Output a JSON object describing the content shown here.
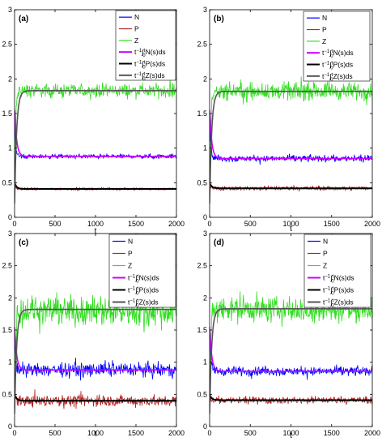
{
  "chart_data": [
    {
      "type": "line",
      "panel_label": "(a)",
      "xlabel": "t",
      "xlim": [
        0,
        2000
      ],
      "ylim": [
        0,
        3
      ],
      "xticks": [
        0,
        500,
        1000,
        1500,
        2000
      ],
      "yticks": [
        0,
        0.5,
        1,
        1.5,
        2,
        2.5,
        3
      ],
      "noise_amplitude": {
        "N": 0.04,
        "P": 0.02,
        "Z": 0.12
      },
      "series": [
        {
          "name": "N",
          "color": "#0000ff",
          "kind": "noisy",
          "level": 0.88,
          "initial": 1.55
        },
        {
          "name": "P",
          "color": "#b22222",
          "kind": "noisy",
          "level": 0.41,
          "initial": 0.5
        },
        {
          "name": "Z",
          "color": "#33dd22",
          "kind": "noisy",
          "level": 1.83,
          "initial": 0.2
        },
        {
          "name": "t⁻¹∫₀ᵗN(s)ds",
          "color": "#cc00ff",
          "kind": "mean",
          "level": 0.88,
          "initial": 1.55
        },
        {
          "name": "t⁻¹∫₀ᵗP(s)ds",
          "color": "#000000",
          "kind": "mean",
          "level": 0.41,
          "initial": 0.5
        },
        {
          "name": "t⁻¹∫₀ᵗZ(s)ds",
          "color": "#555555",
          "kind": "mean",
          "level": 1.83,
          "initial": 0.2
        }
      ]
    },
    {
      "type": "line",
      "panel_label": "(b)",
      "xlabel": "t",
      "xlim": [
        0,
        2000
      ],
      "ylim": [
        0,
        3
      ],
      "xticks": [
        0,
        500,
        1000,
        1500,
        2000
      ],
      "yticks": [
        0,
        0.5,
        1,
        1.5,
        2,
        2.5,
        3
      ],
      "noise_amplitude": {
        "N": 0.06,
        "P": 0.04,
        "Z": 0.15
      },
      "series": [
        {
          "name": "N",
          "color": "#0000ff",
          "kind": "noisy",
          "level": 0.85,
          "initial": 1.55
        },
        {
          "name": "P",
          "color": "#b22222",
          "kind": "noisy",
          "level": 0.42,
          "initial": 0.5
        },
        {
          "name": "Z",
          "color": "#33dd22",
          "kind": "noisy",
          "level": 1.82,
          "initial": 0.2
        },
        {
          "name": "t⁻¹∫₀ᵗN(s)ds",
          "color": "#cc00ff",
          "kind": "mean",
          "level": 0.85,
          "initial": 1.55
        },
        {
          "name": "t⁻¹∫₀ᵗP(s)ds",
          "color": "#000000",
          "kind": "mean",
          "level": 0.42,
          "initial": 0.5
        },
        {
          "name": "t⁻¹∫₀ᵗZ(s)ds",
          "color": "#555555",
          "kind": "mean",
          "level": 1.82,
          "initial": 0.2
        }
      ]
    },
    {
      "type": "line",
      "panel_label": "(c)",
      "xlabel": "t",
      "xlim": [
        0,
        2000
      ],
      "ylim": [
        0,
        3
      ],
      "xticks": [
        0,
        500,
        1000,
        1500,
        2000
      ],
      "yticks": [
        0,
        0.5,
        1,
        1.5,
        2,
        2.5,
        3
      ],
      "noise_amplitude": {
        "N": 0.13,
        "P": 0.11,
        "Z": 0.28
      },
      "series": [
        {
          "name": "N",
          "color": "#0000ff",
          "kind": "noisy",
          "level": 0.88,
          "initial": 1.55
        },
        {
          "name": "P",
          "color": "#b22222",
          "kind": "noisy",
          "level": 0.4,
          "initial": 0.5
        },
        {
          "name": "Z",
          "color": "#33dd22",
          "kind": "noisy",
          "level": 1.8,
          "initial": 0.2
        },
        {
          "name": "t⁻¹∫₀ᵗN(s)ds",
          "color": "#cc00ff",
          "kind": "mean",
          "level": 0.88,
          "initial": 1.55
        },
        {
          "name": "t⁻¹∫₀ᵗP(s)ds",
          "color": "#000000",
          "kind": "mean",
          "level": 0.4,
          "initial": 0.5
        },
        {
          "name": "t⁻¹∫₀ᵗZ(s)ds",
          "color": "#555555",
          "kind": "mean",
          "level": 1.82,
          "initial": 0.2
        }
      ]
    },
    {
      "type": "line",
      "panel_label": "(d)",
      "xlabel": "t",
      "xlim": [
        0,
        2000
      ],
      "ylim": [
        0,
        3
      ],
      "xticks": [
        0,
        500,
        1000,
        1500,
        2000
      ],
      "yticks": [
        0,
        0.5,
        1,
        1.5,
        2,
        2.5,
        3
      ],
      "noise_amplitude": {
        "N": 0.09,
        "P": 0.07,
        "Z": 0.24
      },
      "series": [
        {
          "name": "N",
          "color": "#0000ff",
          "kind": "noisy",
          "level": 0.86,
          "initial": 1.55
        },
        {
          "name": "P",
          "color": "#b22222",
          "kind": "noisy",
          "level": 0.41,
          "initial": 0.5
        },
        {
          "name": "Z",
          "color": "#33dd22",
          "kind": "noisy",
          "level": 1.82,
          "initial": 0.2
        },
        {
          "name": "t⁻¹∫₀ᵗN(s)ds",
          "color": "#cc00ff",
          "kind": "mean",
          "level": 0.86,
          "initial": 1.55
        },
        {
          "name": "t⁻¹∫₀ᵗP(s)ds",
          "color": "#000000",
          "kind": "mean",
          "level": 0.41,
          "initial": 0.5
        },
        {
          "name": "t⁻¹∫₀ᵗZ(s)ds",
          "color": "#555555",
          "kind": "mean",
          "level": 1.83,
          "initial": 0.2
        }
      ]
    }
  ],
  "legend": {
    "items": [
      {
        "base": "N"
      },
      {
        "base": "P"
      },
      {
        "base": "Z"
      },
      {
        "pre": "t",
        "sup1": "−1",
        "int": "∫",
        "limits": "t0",
        "post": "N(s)ds"
      },
      {
        "pre": "t",
        "sup1": "−1",
        "int": "∫",
        "limits": "t0",
        "post": "P(s)ds"
      },
      {
        "pre": "t",
        "sup1": "−1",
        "int": "∫",
        "limits": "t0",
        "post": "Z(s)ds"
      }
    ]
  }
}
